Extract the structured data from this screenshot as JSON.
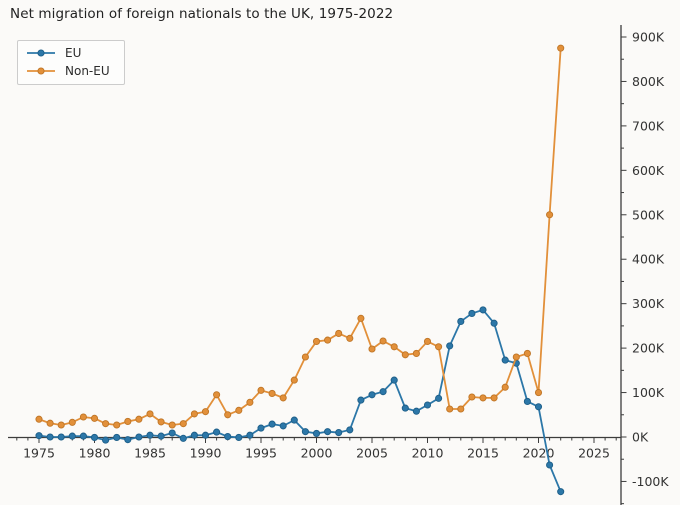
{
  "title": "Net migration of foreign nationals to the UK, 1975-2022",
  "legend": {
    "items": [
      {
        "label": "EU",
        "color": "#2c77a8"
      },
      {
        "label": "Non-EU",
        "color": "#e2903a"
      }
    ]
  },
  "chart_data": {
    "type": "line",
    "title": "Net migration of foreign nationals to the UK, 1975-2022",
    "xlabel": "",
    "ylabel": "",
    "grid": false,
    "legend_position": "upper left",
    "y_axis_side": "right",
    "marker": "circle",
    "xlim": [
      1972.5,
      2027.5
    ],
    "ylim_thousands": [
      -150,
      925
    ],
    "x": [
      1975,
      1976,
      1977,
      1978,
      1979,
      1980,
      1981,
      1982,
      1983,
      1984,
      1985,
      1986,
      1987,
      1988,
      1989,
      1990,
      1991,
      1992,
      1993,
      1994,
      1995,
      1996,
      1997,
      1998,
      1999,
      2000,
      2001,
      2002,
      2003,
      2004,
      2005,
      2006,
      2007,
      2008,
      2009,
      2010,
      2011,
      2012,
      2013,
      2014,
      2015,
      2016,
      2017,
      2018,
      2019,
      2020,
      2021,
      2022
    ],
    "series": [
      {
        "name": "EU",
        "color": "#2c77a8",
        "edge": "#1d5e88",
        "values_thousands": [
          3,
          0,
          0,
          2,
          2,
          -1,
          -7,
          -1,
          -6,
          0,
          4,
          2,
          9,
          -3,
          4,
          4,
          11,
          1,
          -1,
          4,
          20,
          29,
          25,
          38,
          12,
          8,
          12,
          10,
          16,
          83,
          95,
          102,
          128,
          65,
          58,
          72,
          87,
          205,
          260,
          278,
          286,
          256,
          173,
          166,
          80,
          68,
          -63,
          -123
        ]
      },
      {
        "name": "Non-EU",
        "color": "#e2903a",
        "edge": "#bf7526",
        "values_thousands": [
          40,
          31,
          27,
          33,
          45,
          42,
          30,
          27,
          35,
          40,
          52,
          34,
          27,
          30,
          52,
          57,
          95,
          50,
          60,
          78,
          105,
          98,
          88,
          128,
          180,
          215,
          218,
          233,
          222,
          267,
          198,
          216,
          203,
          185,
          188,
          215,
          203,
          63,
          63,
          90,
          88,
          88,
          112,
          180,
          188,
          100,
          500,
          875
        ]
      }
    ],
    "xticks": [
      1975,
      1980,
      1985,
      1990,
      1995,
      2000,
      2005,
      2010,
      2015,
      2020,
      2025
    ],
    "yticks": [
      {
        "value": -100,
        "label": "-100K"
      },
      {
        "value": 0,
        "label": "0K"
      },
      {
        "value": 100,
        "label": "100K"
      },
      {
        "value": 200,
        "label": "200K"
      },
      {
        "value": 300,
        "label": "300K"
      },
      {
        "value": 400,
        "label": "400K"
      },
      {
        "value": 500,
        "label": "500K"
      },
      {
        "value": 600,
        "label": "600K"
      },
      {
        "value": 700,
        "label": "700K"
      },
      {
        "value": 800,
        "label": "800K"
      },
      {
        "value": 900,
        "label": "900K"
      }
    ],
    "minor_tick_step_x_years": 1,
    "minor_tick_step_y_thousands": 50
  },
  "style": {
    "axis_color": "#3c3c3c",
    "tick_label_color": "#333333",
    "background": "#fbfaf8"
  }
}
